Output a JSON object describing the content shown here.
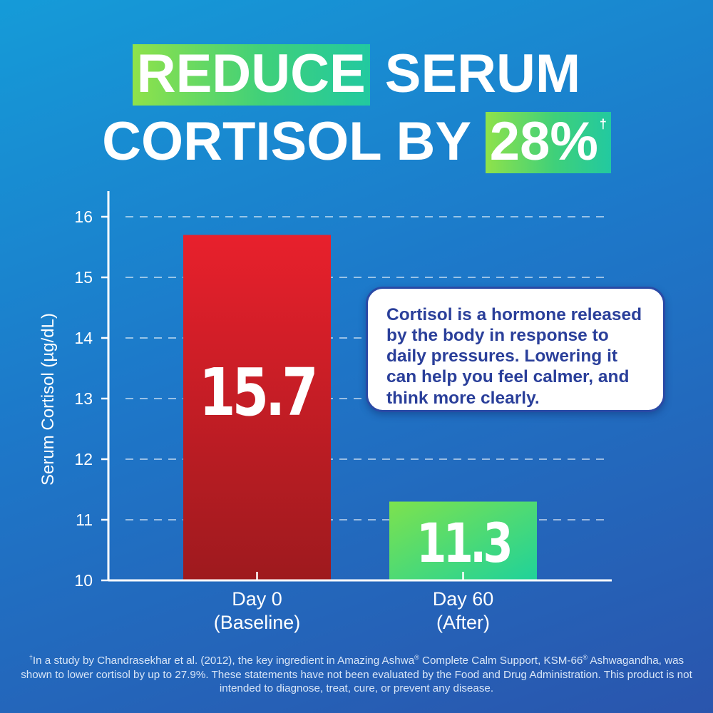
{
  "headline": {
    "line1_highlight": "REDUCE",
    "line1_rest": "SERUM",
    "line2_text": "CORTISOL BY",
    "line2_highlight": "28%",
    "dagger": "†"
  },
  "chart_data": {
    "type": "bar",
    "categories": [
      "Day 0 (Baseline)",
      "Day 60 (After)"
    ],
    "category_lines": [
      [
        "Day 0",
        "(Baseline)"
      ],
      [
        "Day 60",
        "(After)"
      ]
    ],
    "values": [
      15.7,
      11.3
    ],
    "value_labels": [
      "15.7",
      "11.3"
    ],
    "bar_colors": [
      [
        "#e8202c",
        "#9e1a1e"
      ],
      [
        "#7de24e",
        "#1fd29a"
      ]
    ],
    "title": "",
    "xlabel": "",
    "ylabel": "Serum Cortisol (µg/dL)",
    "ylim": [
      10,
      16.4
    ],
    "yticks": [
      10,
      11,
      12,
      13,
      14,
      15,
      16
    ],
    "grid": true
  },
  "callout": {
    "text": "Cortisol is a hormone released by the body in response to daily pressures. Lowering it can help you feel calmer, and think more clearly."
  },
  "footnote": {
    "dagger": "†",
    "part1": "In a study by Chandrasekhar et al. (2012), the key ingredient in Amazing Ashwa",
    "reg1": "®",
    "part2": " Complete Calm Support, KSM-66",
    "reg2": "®",
    "part3": " Ashwagandha, was shown to lower cortisol by up to 27.9%. These statements have not been evaluated by the Food and Drug Administration. This product is not intended to diagnose, treat, cure, or prevent any disease."
  }
}
